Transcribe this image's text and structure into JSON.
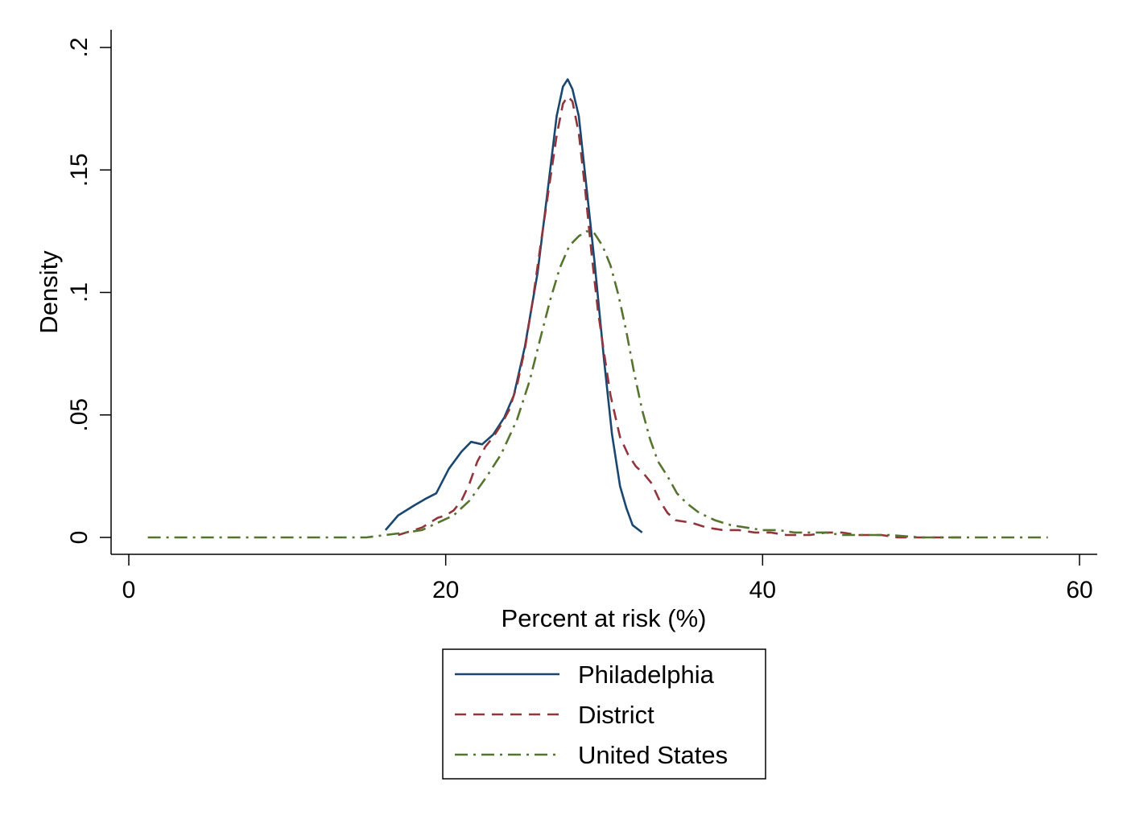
{
  "chart_data": {
    "type": "line",
    "title": "",
    "xlabel": "Percent at risk (%)",
    "ylabel": "Density",
    "xlim": [
      0,
      60
    ],
    "ylim": [
      0,
      0.2
    ],
    "x_ticks": [
      {
        "value": 0,
        "label": "0"
      },
      {
        "value": 20,
        "label": "20"
      },
      {
        "value": 40,
        "label": "40"
      },
      {
        "value": 60,
        "label": "60"
      }
    ],
    "y_ticks": [
      {
        "value": 0,
        "label": "0"
      },
      {
        "value": 0.05,
        "label": ".05"
      },
      {
        "value": 0.1,
        "label": ".1"
      },
      {
        "value": 0.15,
        "label": ".15"
      },
      {
        "value": 0.2,
        "label": ".2"
      }
    ],
    "grid": false,
    "legend": {
      "position": "bottom",
      "entries": [
        "Philadelphia",
        "District",
        "United States"
      ]
    },
    "series": [
      {
        "name": "Philadelphia",
        "color": "#1a476f",
        "dash": "solid",
        "points": [
          [
            16.2,
            0.003
          ],
          [
            17.0,
            0.009
          ],
          [
            18.0,
            0.013
          ],
          [
            18.8,
            0.016
          ],
          [
            19.4,
            0.018
          ],
          [
            20.2,
            0.028
          ],
          [
            21.0,
            0.035
          ],
          [
            21.6,
            0.039
          ],
          [
            22.3,
            0.038
          ],
          [
            23.0,
            0.042
          ],
          [
            23.7,
            0.049
          ],
          [
            24.3,
            0.058
          ],
          [
            25.0,
            0.078
          ],
          [
            25.8,
            0.108
          ],
          [
            26.5,
            0.145
          ],
          [
            27.0,
            0.172
          ],
          [
            27.4,
            0.184
          ],
          [
            27.7,
            0.187
          ],
          [
            28.0,
            0.183
          ],
          [
            28.4,
            0.172
          ],
          [
            28.8,
            0.148
          ],
          [
            29.4,
            0.112
          ],
          [
            30.0,
            0.072
          ],
          [
            30.5,
            0.042
          ],
          [
            31.0,
            0.021
          ],
          [
            31.4,
            0.012
          ],
          [
            31.8,
            0.005
          ],
          [
            32.4,
            0.002
          ]
        ]
      },
      {
        "name": "District",
        "color": "#90353b",
        "dash": "dash",
        "points": [
          [
            17.0,
            0.001
          ],
          [
            18.0,
            0.003
          ],
          [
            18.5,
            0.004
          ],
          [
            19.0,
            0.006
          ],
          [
            19.5,
            0.008
          ],
          [
            20.0,
            0.009
          ],
          [
            20.5,
            0.011
          ],
          [
            21.0,
            0.015
          ],
          [
            21.5,
            0.022
          ],
          [
            22.0,
            0.031
          ],
          [
            22.5,
            0.037
          ],
          [
            23.0,
            0.041
          ],
          [
            23.5,
            0.046
          ],
          [
            24.0,
            0.052
          ],
          [
            24.5,
            0.062
          ],
          [
            25.0,
            0.077
          ],
          [
            25.5,
            0.097
          ],
          [
            26.0,
            0.12
          ],
          [
            26.5,
            0.142
          ],
          [
            27.0,
            0.164
          ],
          [
            27.4,
            0.177
          ],
          [
            27.7,
            0.18
          ],
          [
            28.0,
            0.178
          ],
          [
            28.4,
            0.165
          ],
          [
            28.8,
            0.142
          ],
          [
            29.2,
            0.116
          ],
          [
            29.6,
            0.093
          ],
          [
            30.0,
            0.075
          ],
          [
            30.4,
            0.058
          ],
          [
            31.0,
            0.041
          ],
          [
            31.5,
            0.034
          ],
          [
            32.0,
            0.029
          ],
          [
            32.5,
            0.026
          ],
          [
            33.0,
            0.022
          ],
          [
            33.5,
            0.015
          ],
          [
            34.0,
            0.01
          ],
          [
            34.5,
            0.007
          ],
          [
            35.5,
            0.006
          ],
          [
            36.5,
            0.004
          ],
          [
            37.5,
            0.003
          ],
          [
            38.5,
            0.003
          ],
          [
            39.5,
            0.002
          ],
          [
            40.5,
            0.002
          ],
          [
            41.5,
            0.001
          ],
          [
            43.0,
            0.001
          ],
          [
            44.0,
            0.002
          ],
          [
            45.0,
            0.002
          ],
          [
            46.0,
            0.001
          ],
          [
            47.5,
            0.001
          ],
          [
            48.5,
            0.0
          ],
          [
            49.5,
            0.0
          ],
          [
            51.0,
            0.0
          ],
          [
            52.5,
            0.0
          ]
        ]
      },
      {
        "name": "United States",
        "color": "#55752f",
        "dash": "dashdot",
        "points": [
          [
            1.2,
            0.0
          ],
          [
            4.0,
            0.0
          ],
          [
            8.0,
            0.0
          ],
          [
            12.0,
            0.0
          ],
          [
            15.0,
            0.0
          ],
          [
            16.2,
            0.001
          ],
          [
            17.5,
            0.002
          ],
          [
            18.5,
            0.003
          ],
          [
            19.5,
            0.006
          ],
          [
            20.5,
            0.009
          ],
          [
            21.5,
            0.015
          ],
          [
            22.5,
            0.024
          ],
          [
            23.5,
            0.034
          ],
          [
            24.5,
            0.048
          ],
          [
            25.3,
            0.064
          ],
          [
            26.0,
            0.082
          ],
          [
            26.6,
            0.097
          ],
          [
            27.2,
            0.11
          ],
          [
            27.8,
            0.119
          ],
          [
            28.4,
            0.123
          ],
          [
            28.9,
            0.125
          ],
          [
            29.4,
            0.124
          ],
          [
            29.9,
            0.119
          ],
          [
            30.4,
            0.111
          ],
          [
            30.9,
            0.099
          ],
          [
            31.4,
            0.084
          ],
          [
            31.9,
            0.067
          ],
          [
            32.4,
            0.052
          ],
          [
            32.9,
            0.04
          ],
          [
            33.4,
            0.031
          ],
          [
            34.0,
            0.025
          ],
          [
            34.6,
            0.018
          ],
          [
            35.2,
            0.014
          ],
          [
            36.0,
            0.01
          ],
          [
            37.0,
            0.007
          ],
          [
            38.0,
            0.005
          ],
          [
            39.0,
            0.004
          ],
          [
            40.0,
            0.003
          ],
          [
            41.0,
            0.003
          ],
          [
            42.0,
            0.002
          ],
          [
            43.0,
            0.002
          ],
          [
            44.0,
            0.002
          ],
          [
            45.0,
            0.001
          ],
          [
            46.0,
            0.001
          ],
          [
            48.0,
            0.001
          ],
          [
            50.0,
            0.0
          ],
          [
            52.0,
            0.0
          ],
          [
            55.0,
            0.0
          ],
          [
            58.0,
            0.0
          ]
        ]
      }
    ]
  }
}
